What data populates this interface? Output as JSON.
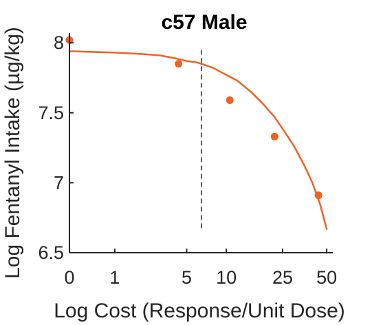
{
  "chart_data": {
    "type": "scatter",
    "title": "c57 Male",
    "xlabel": "Log Cost (Response/Unit Dose)",
    "ylabel": "Log Fentanyl Intake (µg/kg)",
    "x_scale": "log(x+1)",
    "xlim": [
      0,
      55
    ],
    "ylim": [
      6.5,
      8.05
    ],
    "x_ticks": [
      0,
      1,
      5,
      10,
      25,
      50
    ],
    "x_tick_labels": [
      "0",
      "1",
      "5",
      "10",
      "25",
      "50"
    ],
    "y_ticks": [
      6.5,
      7,
      7.5,
      8
    ],
    "y_tick_labels": [
      "6.5",
      "7",
      "7.5",
      "8"
    ],
    "grid": false,
    "colors": {
      "series": "#ee6222",
      "axis": "#262626",
      "reference_line": "#000000"
    },
    "series": [
      {
        "type": "scatter",
        "x": [
          0,
          4.3,
          10.6,
          22,
          44
        ],
        "y": [
          8.02,
          7.85,
          7.59,
          7.33,
          6.91
        ]
      },
      {
        "type": "line",
        "x": [
          0,
          1,
          2,
          3,
          4,
          5,
          6,
          7,
          8,
          10,
          12,
          15,
          18,
          22,
          26,
          30,
          35,
          40,
          45,
          50
        ],
        "y": [
          7.94,
          7.93,
          7.92,
          7.91,
          7.89,
          7.87,
          7.86,
          7.84,
          7.82,
          7.77,
          7.73,
          7.65,
          7.57,
          7.47,
          7.36,
          7.26,
          7.13,
          7.0,
          6.85,
          6.67
        ]
      }
    ],
    "reference_line": {
      "x": 6.5,
      "y_range": [
        6.67,
        7.95
      ],
      "style": "dashed"
    }
  }
}
